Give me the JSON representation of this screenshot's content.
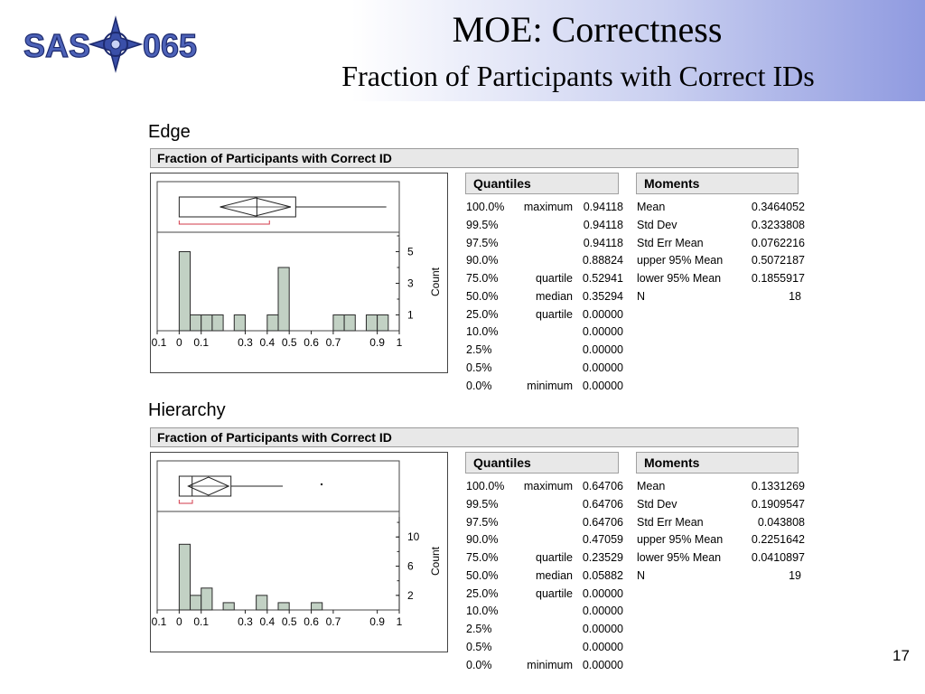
{
  "slide": {
    "title": "MOE:  Correctness",
    "subtitle": "Fraction of Participants with Correct IDs",
    "logo_text": "SAS-065",
    "page_number": "17"
  },
  "sections": [
    {
      "label": "Edge",
      "panel_title": "Fraction of Participants with Correct ID",
      "quantiles_title": "Quantiles",
      "moments_title": "Moments",
      "quantiles": [
        {
          "pct": "100.0%",
          "name": "maximum",
          "value": "0.94118"
        },
        {
          "pct": "99.5%",
          "name": "",
          "value": "0.94118"
        },
        {
          "pct": "97.5%",
          "name": "",
          "value": "0.94118"
        },
        {
          "pct": "90.0%",
          "name": "",
          "value": "0.88824"
        },
        {
          "pct": "75.0%",
          "name": "quartile",
          "value": "0.52941"
        },
        {
          "pct": "50.0%",
          "name": "median",
          "value": "0.35294"
        },
        {
          "pct": "25.0%",
          "name": "quartile",
          "value": "0.00000"
        },
        {
          "pct": "10.0%",
          "name": "",
          "value": "0.00000"
        },
        {
          "pct": "2.5%",
          "name": "",
          "value": "0.00000"
        },
        {
          "pct": "0.5%",
          "name": "",
          "value": "0.00000"
        },
        {
          "pct": "0.0%",
          "name": "minimum",
          "value": "0.00000"
        }
      ],
      "moments": [
        {
          "name": "Mean",
          "value": "0.3464052"
        },
        {
          "name": "Std Dev",
          "value": "0.3233808"
        },
        {
          "name": "Std Err Mean",
          "value": "0.0762216"
        },
        {
          "name": "upper 95% Mean",
          "value": "0.5072187"
        },
        {
          "name": "lower 95% Mean",
          "value": "0.1855917"
        },
        {
          "name": "N",
          "value": "18"
        }
      ]
    },
    {
      "label": "Hierarchy",
      "panel_title": "Fraction of Participants with Correct ID",
      "quantiles_title": "Quantiles",
      "moments_title": "Moments",
      "quantiles": [
        {
          "pct": "100.0%",
          "name": "maximum",
          "value": "0.64706"
        },
        {
          "pct": "99.5%",
          "name": "",
          "value": "0.64706"
        },
        {
          "pct": "97.5%",
          "name": "",
          "value": "0.64706"
        },
        {
          "pct": "90.0%",
          "name": "",
          "value": "0.47059"
        },
        {
          "pct": "75.0%",
          "name": "quartile",
          "value": "0.23529"
        },
        {
          "pct": "50.0%",
          "name": "median",
          "value": "0.05882"
        },
        {
          "pct": "25.0%",
          "name": "quartile",
          "value": "0.00000"
        },
        {
          "pct": "10.0%",
          "name": "",
          "value": "0.00000"
        },
        {
          "pct": "2.5%",
          "name": "",
          "value": "0.00000"
        },
        {
          "pct": "0.5%",
          "name": "",
          "value": "0.00000"
        },
        {
          "pct": "0.0%",
          "name": "minimum",
          "value": "0.00000"
        }
      ],
      "moments": [
        {
          "name": "Mean",
          "value": "0.1331269"
        },
        {
          "name": "Std Dev",
          "value": "0.1909547"
        },
        {
          "name": "Std Err Mean",
          "value": "0.043808"
        },
        {
          "name": "upper 95% Mean",
          "value": "0.2251642"
        },
        {
          "name": "lower 95% Mean",
          "value": "0.0410897"
        },
        {
          "name": "N",
          "value": "19"
        }
      ]
    }
  ],
  "chart_data": [
    {
      "type": "bar",
      "x_tick_labels": [
        "-0.1",
        "0",
        "0.1",
        "0.3",
        "0.4",
        "0.5",
        "0.6",
        "0.7",
        "0.9",
        "1"
      ],
      "x_tick_values": [
        -0.1,
        0,
        0.1,
        0.3,
        0.4,
        0.5,
        0.6,
        0.7,
        0.9,
        1
      ],
      "xlim": [
        -0.1,
        1.0
      ],
      "count_label": "Count",
      "count_tick_labels": [
        "1",
        "3",
        "5"
      ],
      "count_tick_values": [
        1,
        3,
        5
      ],
      "ylim": [
        0,
        6.0
      ],
      "bin_width": 0.05,
      "bins": [
        {
          "x0": 0.0,
          "count": 5
        },
        {
          "x0": 0.05,
          "count": 1
        },
        {
          "x0": 0.1,
          "count": 1
        },
        {
          "x0": 0.15,
          "count": 1
        },
        {
          "x0": 0.25,
          "count": 1
        },
        {
          "x0": 0.4,
          "count": 1
        },
        {
          "x0": 0.45,
          "count": 4
        },
        {
          "x0": 0.7,
          "count": 1
        },
        {
          "x0": 0.75,
          "count": 1
        },
        {
          "x0": 0.85,
          "count": 1
        },
        {
          "x0": 0.9,
          "count": 1
        }
      ],
      "box": {
        "min": 0.0,
        "q1": 0.0,
        "median": 0.35294,
        "q3": 0.52941,
        "max": 0.94118,
        "mean": 0.3464052,
        "lower_mean": 0.1855917,
        "upper_mean": 0.5072187,
        "shortest_half": [
          0.0,
          0.41
        ]
      },
      "outliers": []
    },
    {
      "type": "bar",
      "x_tick_labels": [
        "-0.1",
        "0",
        "0.1",
        "0.3",
        "0.4",
        "0.5",
        "0.6",
        "0.7",
        "0.9",
        "1"
      ],
      "x_tick_values": [
        -0.1,
        0,
        0.1,
        0.3,
        0.4,
        0.5,
        0.6,
        0.7,
        0.9,
        1
      ],
      "xlim": [
        -0.1,
        1.0
      ],
      "count_label": "Count",
      "count_tick_labels": [
        "2",
        "6",
        "10"
      ],
      "count_tick_values": [
        2,
        6,
        10
      ],
      "ylim": [
        0,
        13.0
      ],
      "bin_width": 0.05,
      "bins": [
        {
          "x0": 0.0,
          "count": 9
        },
        {
          "x0": 0.05,
          "count": 2
        },
        {
          "x0": 0.1,
          "count": 3
        },
        {
          "x0": 0.2,
          "count": 1
        },
        {
          "x0": 0.35,
          "count": 2
        },
        {
          "x0": 0.45,
          "count": 1
        },
        {
          "x0": 0.6,
          "count": 1
        }
      ],
      "box": {
        "min": 0.0,
        "q1": 0.0,
        "median": 0.05882,
        "q3": 0.23529,
        "max": 0.47059,
        "mean": 0.1331269,
        "lower_mean": 0.0410897,
        "upper_mean": 0.2251642,
        "shortest_half": [
          0.0,
          0.06
        ]
      },
      "outliers": [
        0.64706
      ]
    }
  ]
}
